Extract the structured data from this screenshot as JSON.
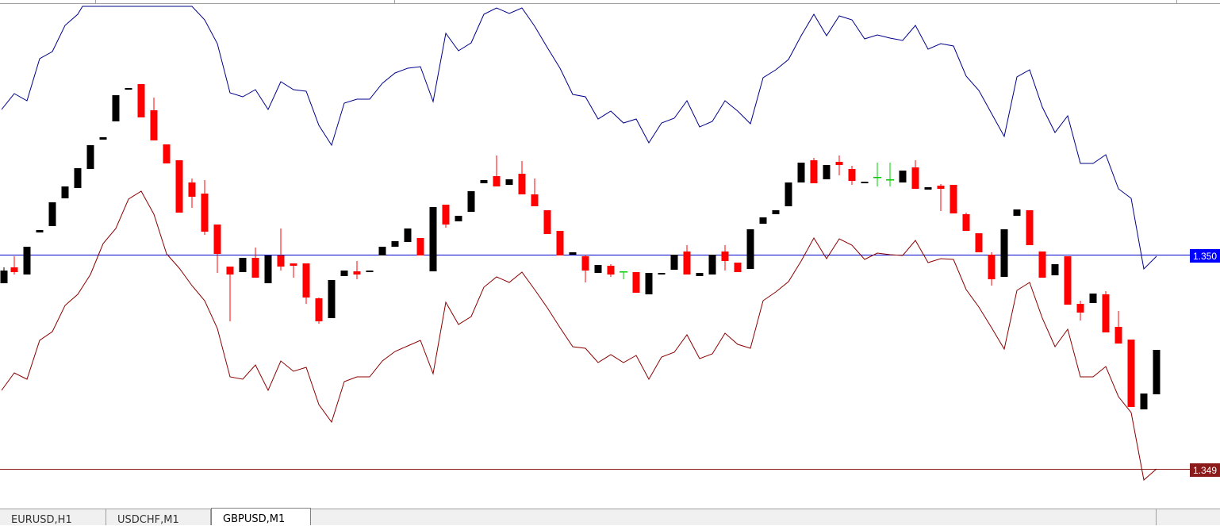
{
  "tabs": [
    {
      "label": "EURUSD,H1",
      "active": false
    },
    {
      "label": "USDCHF,M1",
      "active": false
    },
    {
      "label": "GBPUSD,M1",
      "active": true
    }
  ],
  "price_labels": {
    "upper": {
      "text": "1.350",
      "color": "#0000ff"
    },
    "lower": {
      "text": "1.349",
      "color": "#8b1a1a"
    }
  },
  "colors": {
    "bull_candle": "#000000",
    "bear_candle": "#ff0000",
    "doji": "#00cc00",
    "upper_band": "#00008b",
    "lower_band": "#8b0000",
    "hline_upper": "#0000cd",
    "hline_lower": "#8b1a1a"
  }
}
